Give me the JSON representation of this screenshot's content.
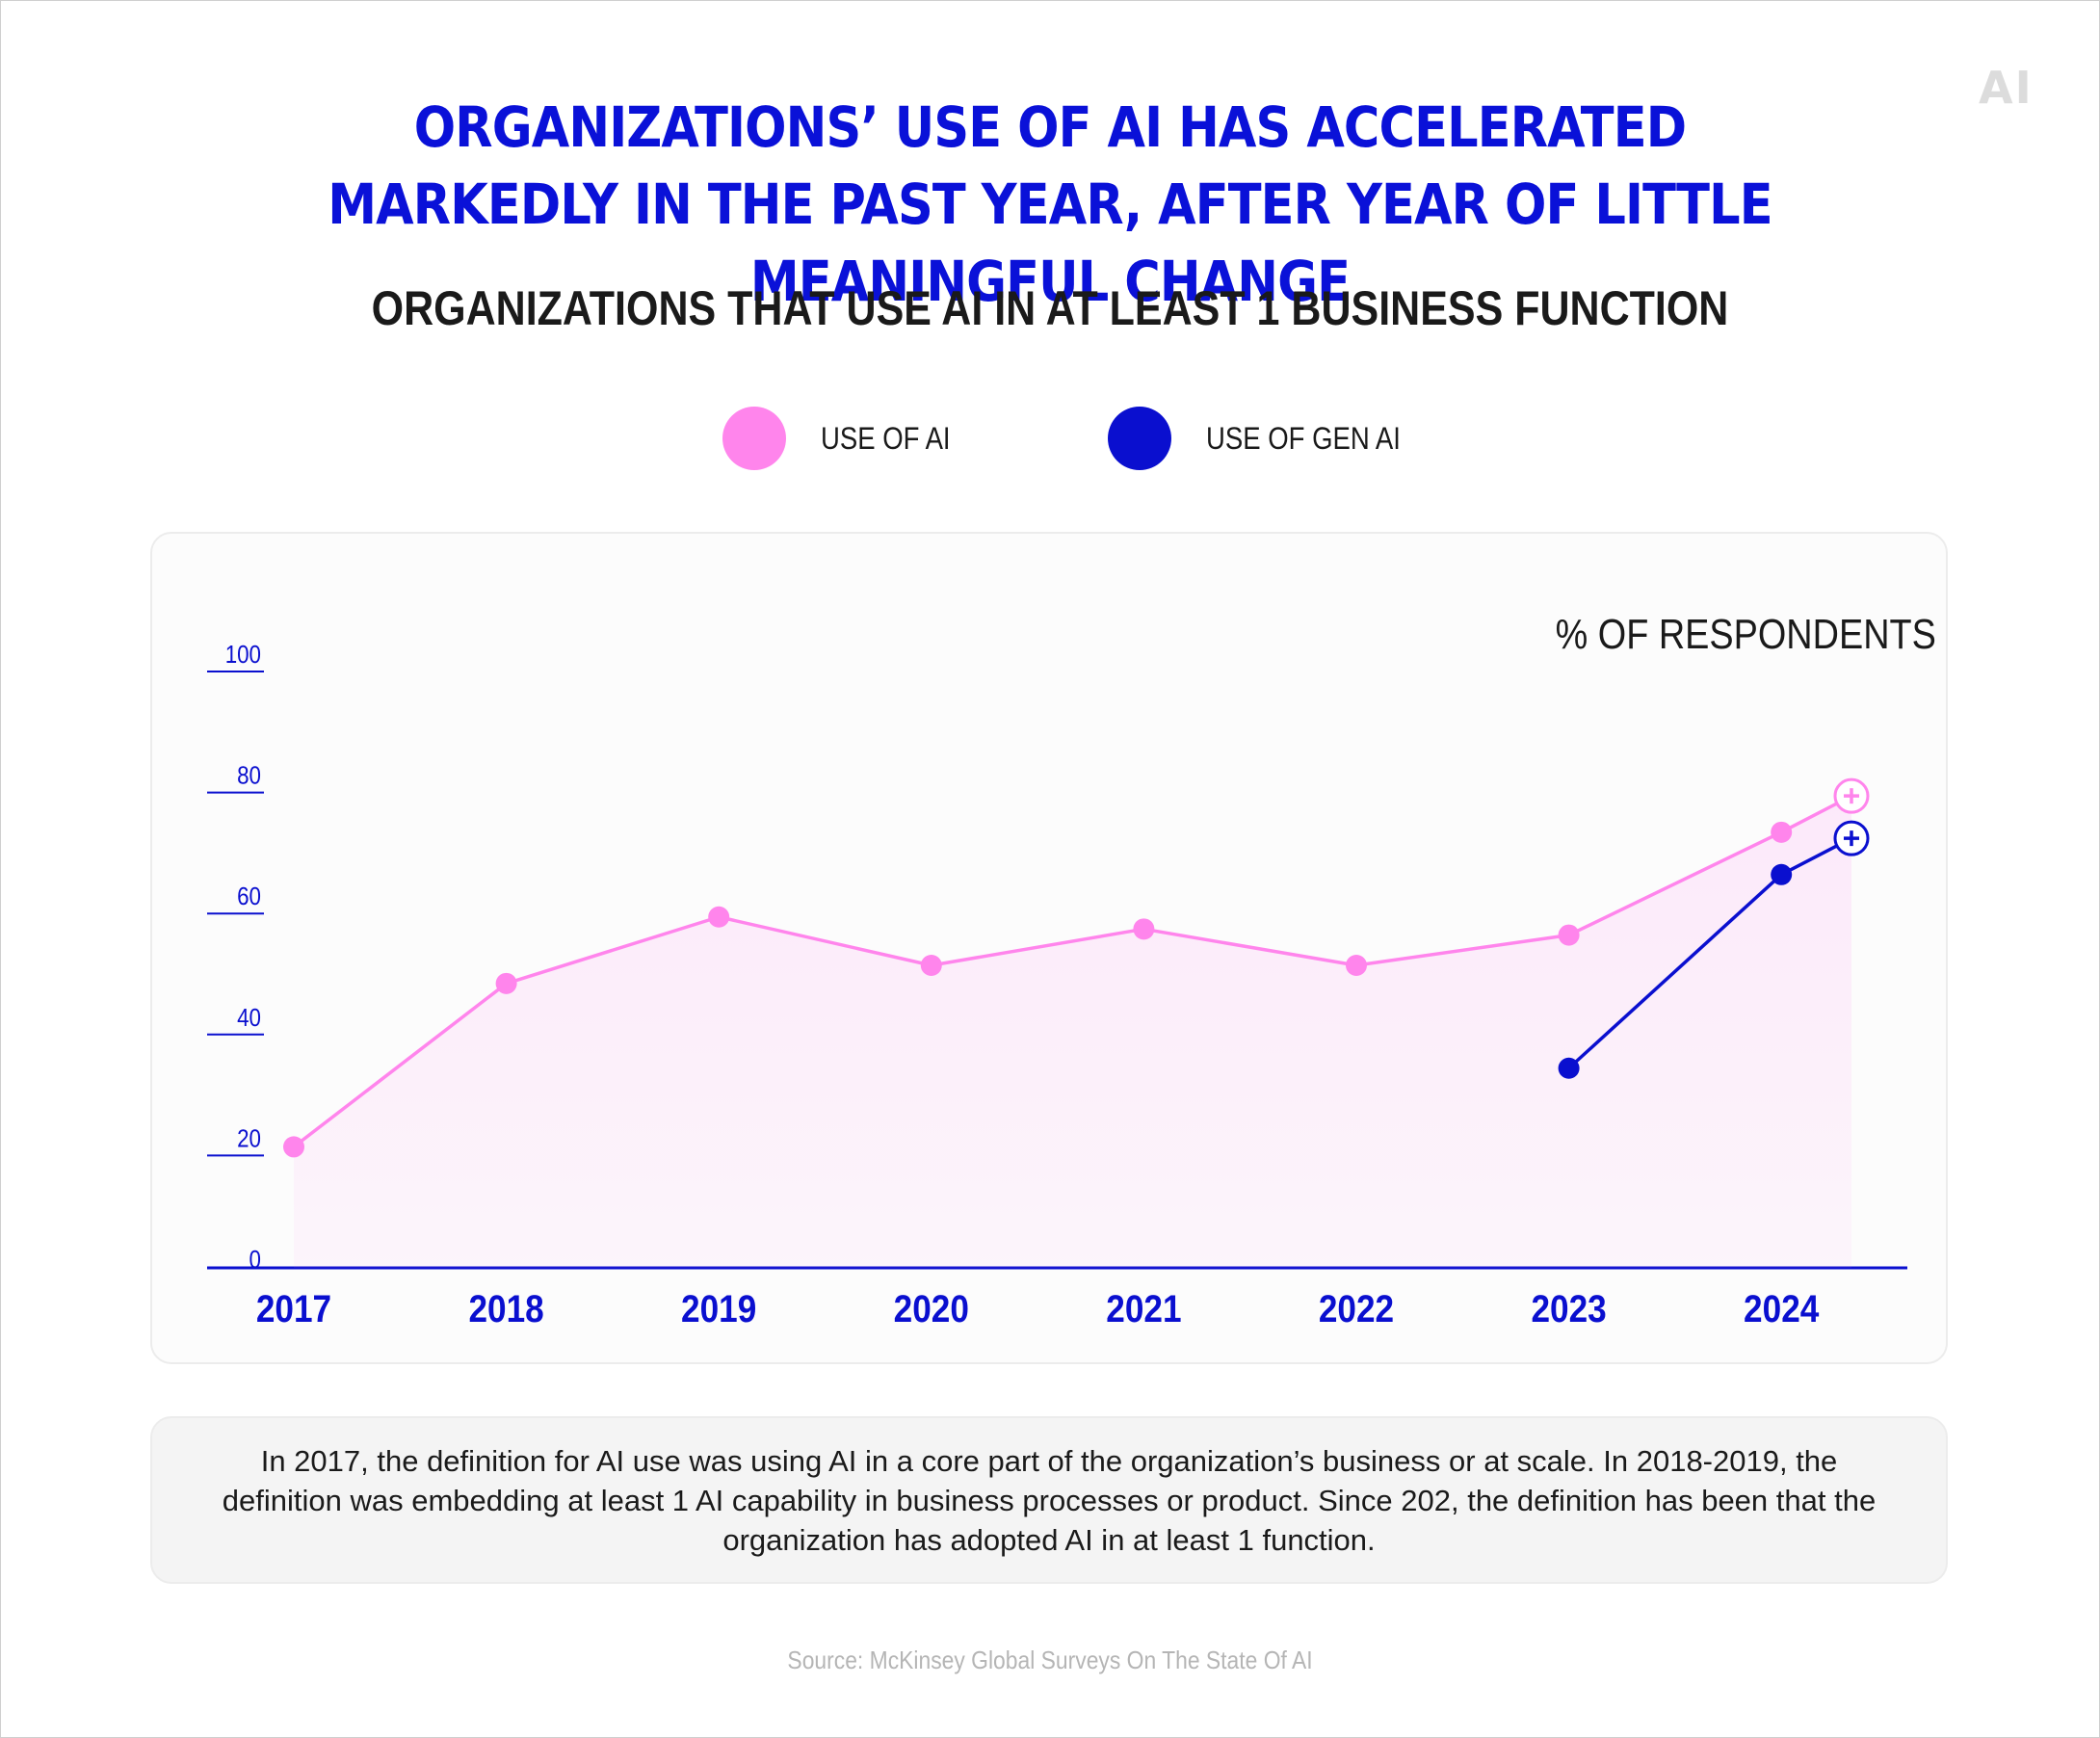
{
  "brand": {
    "logo_text": "AI"
  },
  "header": {
    "title": "ORGANIZATIONS’ USE OF AI HAS ACCELERATED MARKEDLY IN THE PAST YEAR, AFTER YEAR OF LITTLE MEANINGFUL CHANGE",
    "subtitle": "ORGANIZATIONS THAT USE AI IN AT LEAST 1 BUSINESS FUNCTION"
  },
  "legend": [
    {
      "label": "USE OF AI",
      "color": "#ff85ec"
    },
    {
      "label": "USE OF GEN AI",
      "color": "#0a0fcf"
    }
  ],
  "note": "In 2017, the definition for AI use was using AI in a core part of the organization’s business or at scale. In 2018-2019, the definition was embedding at least 1 AI capability in business processes or product. Since 202, the definition has been that the organization has adopted AI in at least 1 function.",
  "source": "Source: McKinsey Global Surveys On The State Of AI",
  "chart_data": {
    "type": "line",
    "ylabel": "% OF RESPONDENTS",
    "ylim": [
      0,
      100
    ],
    "yticks": [
      0,
      20,
      40,
      60,
      80,
      100
    ],
    "categories": [
      "2017",
      "2018",
      "2019",
      "2020",
      "2021",
      "2022",
      "2023",
      "2024"
    ],
    "series": [
      {
        "name": "USE OF AI",
        "color": "#ff85ec",
        "points": [
          {
            "x": 2017.0,
            "y": 20
          },
          {
            "x": 2018.0,
            "y": 47
          },
          {
            "x": 2019.0,
            "y": 58
          },
          {
            "x": 2020.0,
            "y": 50
          },
          {
            "x": 2021.0,
            "y": 56
          },
          {
            "x": 2022.0,
            "y": 50
          },
          {
            "x": 2023.0,
            "y": 55
          },
          {
            "x": 2024.0,
            "y": 72
          },
          {
            "x": 2024.33,
            "y": 78,
            "marker": "plus"
          }
        ]
      },
      {
        "name": "USE OF GEN AI",
        "color": "#0a0fcf",
        "points": [
          {
            "x": 2023.0,
            "y": 33
          },
          {
            "x": 2024.0,
            "y": 65
          },
          {
            "x": 2024.33,
            "y": 71,
            "marker": "plus"
          }
        ]
      }
    ],
    "grid": false,
    "legend_position": "top-center",
    "area_fill_series": "USE OF AI"
  }
}
